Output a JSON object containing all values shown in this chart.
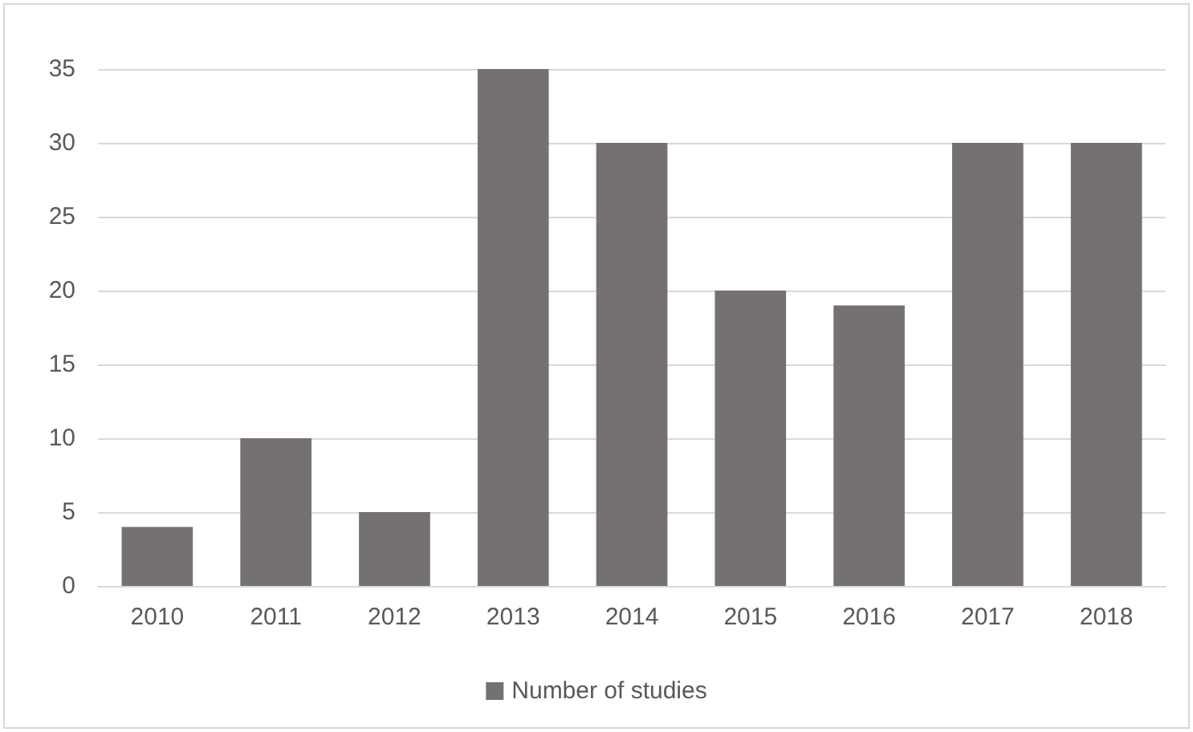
{
  "chart_data": {
    "type": "bar",
    "categories": [
      "2010",
      "2011",
      "2012",
      "2013",
      "2014",
      "2015",
      "2016",
      "2017",
      "2018"
    ],
    "series": [
      {
        "name": "Number of studies",
        "color": "#767171",
        "values": [
          4,
          10,
          5,
          35,
          30,
          20,
          19,
          30,
          30
        ]
      }
    ],
    "ylim": [
      0,
      35
    ],
    "yticks": [
      0,
      5,
      10,
      15,
      20,
      25,
      30,
      35
    ],
    "grid": "y",
    "legend": "bottom"
  }
}
